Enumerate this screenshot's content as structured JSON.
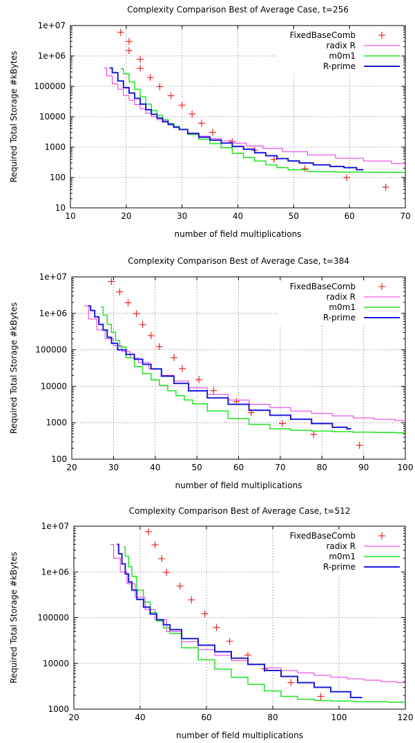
{
  "chart_data": [
    {
      "type": "scatter",
      "title": "Complexity Comparison Best of Average Case, t=256",
      "xlabel": "number of field multiplications",
      "ylabel": "Required Total Storage #kBytes",
      "xlim": [
        10,
        70
      ],
      "ylim": [
        10,
        10000000
      ],
      "yscale": "log",
      "xticks": [
        10,
        20,
        30,
        40,
        50,
        60,
        70
      ],
      "yticks": [
        10,
        100,
        1000,
        10000,
        100000,
        1000000,
        10000000
      ],
      "ytick_labels": [
        "10",
        "100",
        "1000",
        "10000",
        "100000",
        "1e+06",
        "1e+07"
      ],
      "grid": true,
      "legend": "top-right",
      "series": [
        {
          "name": "FixedBaseComb",
          "kind": "points",
          "color": "#e8251f",
          "x": [
            19,
            20.5,
            20.5,
            22.5,
            22.5,
            24.3,
            26,
            28,
            30,
            31.8,
            33.5,
            35.5,
            39,
            43,
            46.5,
            52,
            59.5,
            66.5
          ],
          "y": [
            6000000,
            3000000,
            1500000,
            780000,
            390000,
            195000,
            98000,
            49000,
            24000,
            12200,
            6100,
            3050,
            1500,
            780,
            390,
            195,
            98,
            48
          ]
        },
        {
          "name": "radix R",
          "kind": "line",
          "color": "#e62ee6",
          "x": [
            16,
            17,
            18,
            19,
            20,
            21,
            22,
            23,
            24,
            25,
            26,
            27,
            28,
            29,
            30,
            32,
            34,
            36,
            38,
            40,
            43,
            46,
            50,
            55,
            60,
            65,
            70
          ],
          "y": [
            400000,
            220000,
            120000,
            80000,
            50000,
            35000,
            25000,
            18000,
            13000,
            10000,
            8000,
            6500,
            5500,
            4500,
            3800,
            2900,
            2300,
            1900,
            1600,
            1350,
            1100,
            900,
            700,
            550,
            430,
            350,
            290
          ]
        },
        {
          "name": "m0m1",
          "kind": "line",
          "color": "#1ee61e",
          "x": [
            19,
            20,
            21,
            22,
            23,
            24,
            25,
            26,
            27,
            28,
            29,
            30,
            32,
            34,
            36,
            38,
            40,
            42,
            44,
            46,
            48,
            50,
            55,
            60,
            65,
            70
          ],
          "y": [
            380000,
            260000,
            140000,
            80000,
            45000,
            26000,
            16000,
            11000,
            8000,
            6000,
            4800,
            3800,
            2600,
            1800,
            1300,
            950,
            620,
            450,
            350,
            260,
            210,
            180,
            155,
            150,
            148,
            147
          ]
        },
        {
          "name": "R-prime",
          "kind": "line",
          "color": "#1a1ad6",
          "x": [
            17,
            18,
            19,
            20,
            21,
            22,
            23,
            24,
            25,
            26,
            27,
            28,
            29,
            30,
            32,
            34,
            36,
            38,
            40,
            42,
            44,
            46,
            48,
            50,
            52,
            55,
            58,
            60,
            62.5
          ],
          "y": [
            400000,
            280000,
            150000,
            90000,
            60000,
            40000,
            26000,
            17000,
            12000,
            9000,
            7000,
            5500,
            4500,
            3800,
            2800,
            2100,
            1700,
            1350,
            1050,
            850,
            650,
            520,
            420,
            350,
            300,
            260,
            230,
            210,
            180
          ]
        }
      ]
    },
    {
      "type": "scatter",
      "title": "Complexity Comparison Best of Average Case, t=384",
      "xlabel": "number of field multiplications",
      "ylabel": "Required Total Storage #kBytes",
      "xlim": [
        20,
        100
      ],
      "ylim": [
        100,
        10000000
      ],
      "yscale": "log",
      "xticks": [
        20,
        30,
        40,
        50,
        60,
        70,
        80,
        90,
        100
      ],
      "yticks": [
        100,
        1000,
        10000,
        100000,
        1000000,
        10000000
      ],
      "ytick_labels": [
        "100",
        "1000",
        "10000",
        "100000",
        "1e+06",
        "1e+07"
      ],
      "grid": true,
      "legend": "top-right",
      "series": [
        {
          "name": "FixedBaseComb",
          "kind": "points",
          "color": "#e8251f",
          "x": [
            29.5,
            31.5,
            33.5,
            35.5,
            37,
            39,
            41,
            44.5,
            46.5,
            50.5,
            54,
            59.5,
            63,
            70.5,
            78,
            89
          ],
          "y": [
            7500000,
            3900000,
            1950000,
            980000,
            490000,
            245000,
            122000,
            61000,
            30500,
            15200,
            7600,
            3800,
            1900,
            950,
            475,
            240
          ]
        },
        {
          "name": "radix R",
          "kind": "line",
          "color": "#e62ee6",
          "x": [
            23,
            25,
            27,
            29,
            31,
            33,
            35,
            37,
            40,
            43,
            46,
            50,
            55,
            60,
            65,
            70,
            75,
            80,
            85,
            90,
            95,
            100
          ],
          "y": [
            1600000,
            700000,
            350000,
            200000,
            130000,
            90000,
            60000,
            45000,
            30000,
            20000,
            14000,
            9000,
            6000,
            4200,
            3200,
            2600,
            2100,
            1800,
            1550,
            1350,
            1250,
            1150
          ]
        },
        {
          "name": "m0m1",
          "kind": "line",
          "color": "#1ee61e",
          "x": [
            27,
            28,
            29,
            30,
            31,
            32,
            34,
            36,
            38,
            40,
            42,
            44,
            46,
            48,
            50,
            55,
            60,
            65,
            70,
            75,
            80,
            85,
            90,
            95,
            100
          ],
          "y": [
            1500000,
            900000,
            500000,
            300000,
            180000,
            120000,
            60000,
            35000,
            22000,
            15000,
            10500,
            7500,
            5500,
            4200,
            3300,
            2100,
            1300,
            900,
            680,
            620,
            590,
            570,
            550,
            540,
            530
          ]
        },
        {
          "name": "R-prime",
          "kind": "line",
          "color": "#1a1ad6",
          "x": [
            24,
            25,
            26,
            27,
            28,
            29,
            30,
            32,
            34,
            36,
            38,
            40,
            43,
            46,
            50,
            55,
            60,
            65,
            70,
            75,
            80,
            85,
            87
          ],
          "y": [
            1600000,
            1200000,
            800000,
            500000,
            350000,
            220000,
            150000,
            100000,
            75000,
            55000,
            40000,
            30000,
            19000,
            12000,
            7500,
            4800,
            3200,
            2200,
            1600,
            1250,
            950,
            750,
            680
          ]
        }
      ]
    },
    {
      "type": "scatter",
      "title": "Complexity Comparison Best of Average Case, t=512",
      "xlabel": "number of field multiplications",
      "ylabel": "Required Total Storage #kBytes",
      "xlim": [
        20,
        120
      ],
      "ylim": [
        1000,
        10000000
      ],
      "yscale": "log",
      "xticks": [
        20,
        40,
        60,
        80,
        100,
        120
      ],
      "yticks": [
        1000,
        10000,
        100000,
        1000000,
        10000000
      ],
      "ytick_labels": [
        "1000",
        "10000",
        "100000",
        "1e+06",
        "1e+07"
      ],
      "grid": true,
      "legend": "top-right",
      "series": [
        {
          "name": "FixedBaseComb",
          "kind": "points",
          "color": "#e8251f",
          "x": [
            42.5,
            44.5,
            46.5,
            48,
            52,
            55.5,
            59.5,
            63,
            67,
            72.5,
            77.5,
            85.5,
            94.5
          ],
          "y": [
            7600000,
            3900000,
            1950000,
            980000,
            490000,
            245000,
            122000,
            61000,
            30500,
            15200,
            7600,
            3800,
            1900
          ]
        },
        {
          "name": "radix R",
          "kind": "line",
          "color": "#e62ee6",
          "x": [
            31,
            33,
            35,
            37,
            40,
            43,
            46,
            50,
            55,
            60,
            65,
            70,
            75,
            80,
            85,
            90,
            95,
            100,
            105,
            110,
            115,
            120
          ],
          "y": [
            4000000,
            2000000,
            1000000,
            550000,
            280000,
            150000,
            90000,
            50000,
            30000,
            20000,
            15000,
            11500,
            9500,
            8000,
            7000,
            6200,
            5500,
            5000,
            4600,
            4300,
            4000,
            3800
          ]
        },
        {
          "name": "m0m1",
          "kind": "line",
          "color": "#1ee61e",
          "x": [
            35,
            36,
            37,
            38,
            40,
            42,
            44,
            46,
            48,
            50,
            55,
            60,
            65,
            70,
            75,
            80,
            85,
            90,
            95,
            100,
            110,
            120
          ],
          "y": [
            3500000,
            2200000,
            1300000,
            800000,
            400000,
            220000,
            130000,
            85000,
            60000,
            45000,
            22000,
            12000,
            7500,
            5000,
            3500,
            2500,
            1900,
            1650,
            1550,
            1500,
            1450,
            1420
          ]
        },
        {
          "name": "R-prime",
          "kind": "line",
          "color": "#1a1ad6",
          "x": [
            33,
            34,
            35,
            36,
            37,
            38,
            40,
            42,
            44,
            46,
            48,
            50,
            55,
            60,
            65,
            70,
            75,
            80,
            85,
            90,
            95,
            100,
            107
          ],
          "y": [
            4000000,
            2500000,
            1500000,
            900000,
            600000,
            400000,
            250000,
            170000,
            120000,
            90000,
            70000,
            55000,
            35000,
            25000,
            18000,
            13000,
            9500,
            7000,
            5200,
            3800,
            3000,
            2400,
            1800
          ]
        }
      ]
    }
  ]
}
